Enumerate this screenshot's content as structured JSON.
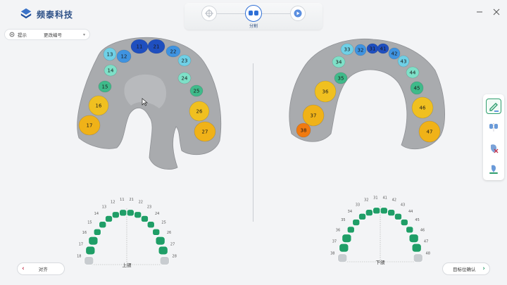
{
  "app": {
    "name": "频泰科技"
  },
  "steps": {
    "active_label": "分割"
  },
  "hint": {
    "label": "提示",
    "value": "更改编号"
  },
  "upper": {
    "teeth": [
      {
        "n": "11",
        "color": "#1f4fbf"
      },
      {
        "n": "21",
        "color": "#1f4fbf"
      },
      {
        "n": "12",
        "color": "#3f93e0"
      },
      {
        "n": "22",
        "color": "#3f93e0"
      },
      {
        "n": "13",
        "color": "#6fd0e6"
      },
      {
        "n": "23",
        "color": "#6fd0e6"
      },
      {
        "n": "14",
        "color": "#7ee0c8"
      },
      {
        "n": "24",
        "color": "#7ee0c8"
      },
      {
        "n": "15",
        "color": "#3fba8a"
      },
      {
        "n": "25",
        "color": "#3fba8a"
      },
      {
        "n": "16",
        "color": "#f0c020"
      },
      {
        "n": "26",
        "color": "#f0c020"
      },
      {
        "n": "17",
        "color": "#f0b218"
      },
      {
        "n": "27",
        "color": "#f0b218"
      }
    ]
  },
  "lower": {
    "teeth": [
      {
        "n": "31",
        "color": "#1f4fbf"
      },
      {
        "n": "41",
        "color": "#1f4fbf"
      },
      {
        "n": "32",
        "color": "#3f93e0"
      },
      {
        "n": "42",
        "color": "#3f93e0"
      },
      {
        "n": "33",
        "color": "#6fd0e6"
      },
      {
        "n": "43",
        "color": "#6fd0e6"
      },
      {
        "n": "34",
        "color": "#7ee0c8"
      },
      {
        "n": "44",
        "color": "#7ee0c8"
      },
      {
        "n": "35",
        "color": "#3fba8a"
      },
      {
        "n": "45",
        "color": "#3fba8a"
      },
      {
        "n": "36",
        "color": "#f0c020"
      },
      {
        "n": "46",
        "color": "#f0c020"
      },
      {
        "n": "37",
        "color": "#f0b218"
      },
      {
        "n": "47",
        "color": "#f0b218"
      },
      {
        "n": "38",
        "color": "#f07a10"
      }
    ]
  },
  "chart_upper": {
    "caption": "上颌",
    "numbers": [
      "18",
      "17",
      "16",
      "15",
      "14",
      "13",
      "12",
      "11",
      "21",
      "22",
      "23",
      "24",
      "25",
      "26",
      "27",
      "28"
    ]
  },
  "chart_lower": {
    "caption": "下颌",
    "numbers": [
      "38",
      "37",
      "36",
      "35",
      "34",
      "33",
      "32",
      "31",
      "41",
      "42",
      "43",
      "44",
      "45",
      "46",
      "47",
      "48"
    ]
  },
  "buttons": {
    "back": "对齐",
    "next": "目标位确认"
  },
  "colors": {
    "tooth_green": "#1f9e67",
    "missing": "#c8ccd0",
    "accent": "#2f6fd6"
  }
}
